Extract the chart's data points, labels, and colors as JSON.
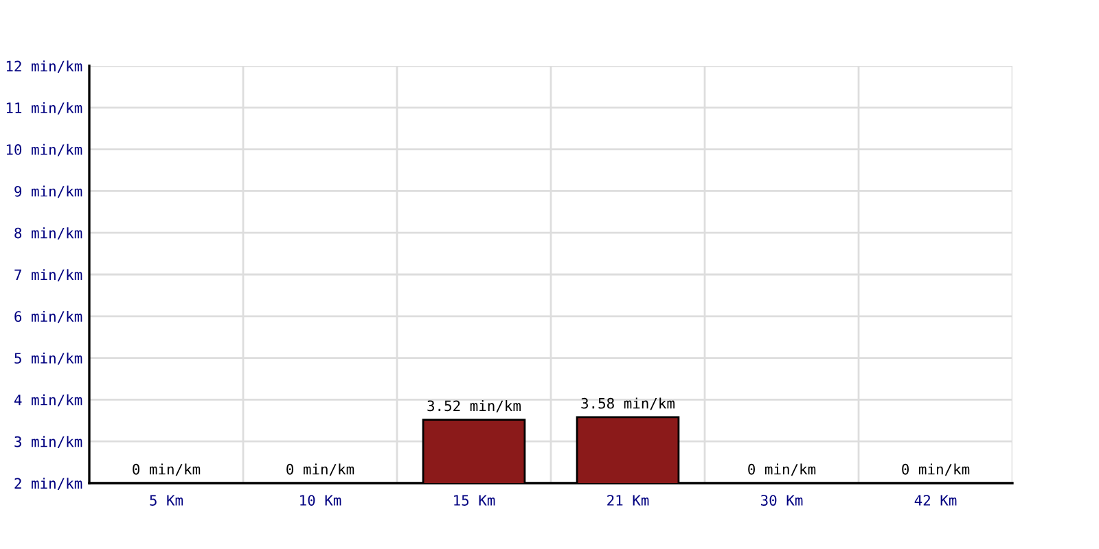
{
  "chart_data": {
    "type": "bar",
    "categories": [
      "5 Km",
      "10 Km",
      "15 Km",
      "21 Km",
      "30 Km",
      "42 Km"
    ],
    "values": [
      null,
      null,
      3.52,
      3.58,
      null,
      null
    ],
    "value_labels": [
      "0 min/km",
      "0 min/km",
      "3.52 min/km",
      "3.58 min/km",
      "0 min/km",
      "0 min/km"
    ],
    "color": "#8b1a1a",
    "ylim": [
      2,
      12
    ],
    "yticks": [
      {
        "value": 2,
        "label": "2 min/km"
      },
      {
        "value": 3,
        "label": "3 min/km"
      },
      {
        "value": 4,
        "label": "4 min/km"
      },
      {
        "value": 5,
        "label": "5 min/km"
      },
      {
        "value": 6,
        "label": "6 min/km"
      },
      {
        "value": 7,
        "label": "7 min/km"
      },
      {
        "value": 8,
        "label": "8 min/km"
      },
      {
        "value": 9,
        "label": "9 min/km"
      },
      {
        "value": 10,
        "label": "10 min/km"
      },
      {
        "value": 11,
        "label": "11 min/km"
      },
      {
        "value": 12,
        "label": "12 min/km"
      }
    ],
    "grid": true
  }
}
